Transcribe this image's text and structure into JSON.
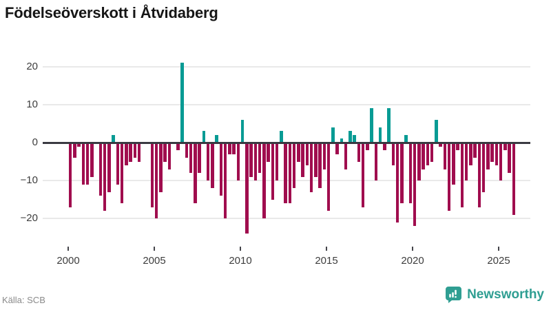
{
  "title": "Födelseöverskott i Åtvidaberg",
  "source": {
    "label": "Källa: SCB"
  },
  "brand": {
    "name": "Newsworthy",
    "icon": "newsworthy-chart-bubble-icon"
  },
  "colors": {
    "positive": "#089b94",
    "negative": "#a00d4e",
    "axis": "#3a3a42",
    "grid": "#e9e9e9",
    "title": "#161616",
    "tick_label": "#3d3d3d",
    "source_label": "#8a8a8a",
    "brand_teal": "#2f9e92"
  },
  "chart_data": {
    "type": "bar",
    "title": "Födelseöverskott i Åtvidaberg",
    "frequency": "quarterly",
    "start": "2000-Q1",
    "end": "2025-Q4",
    "grid": "horizontal",
    "legend": "none",
    "y_ticks": [
      20,
      10,
      0,
      -10,
      -20
    ],
    "y_tick_labels": [
      "20",
      "10",
      "0",
      "−10",
      "−20"
    ],
    "x_ticks": [
      2000,
      2005,
      2010,
      2015,
      2020,
      2025
    ],
    "ylim": [
      -26,
      22
    ],
    "values": [
      -17,
      -4,
      -1,
      -11,
      -11,
      -9,
      0,
      -14,
      -18,
      -13,
      2,
      -11,
      -16,
      -6,
      -5,
      -4,
      -5,
      0,
      0,
      -17,
      -20,
      -13,
      -5,
      -7,
      0,
      -2,
      21,
      -4,
      -8,
      -16,
      -8,
      3,
      -10,
      -12,
      2,
      -14,
      -20,
      -3,
      -3,
      -10,
      6,
      -24,
      -9,
      -10,
      -8,
      -20,
      -5,
      -15,
      -10,
      3,
      -16,
      -16,
      -12,
      -5,
      -9,
      -6,
      -13,
      -9,
      -12,
      -7,
      -18,
      4,
      -3,
      1,
      -7,
      3,
      2,
      -5,
      -17,
      -2,
      9,
      -10,
      4,
      -2,
      9,
      -6,
      -21,
      -16,
      2,
      -16,
      -22,
      -10,
      -7,
      -6,
      -5,
      6,
      -1,
      -7,
      -18,
      -11,
      -2,
      -17,
      -10,
      -6,
      -4,
      -17,
      -13,
      -7,
      -5,
      -6,
      -10,
      -2,
      -8,
      -19
    ]
  }
}
